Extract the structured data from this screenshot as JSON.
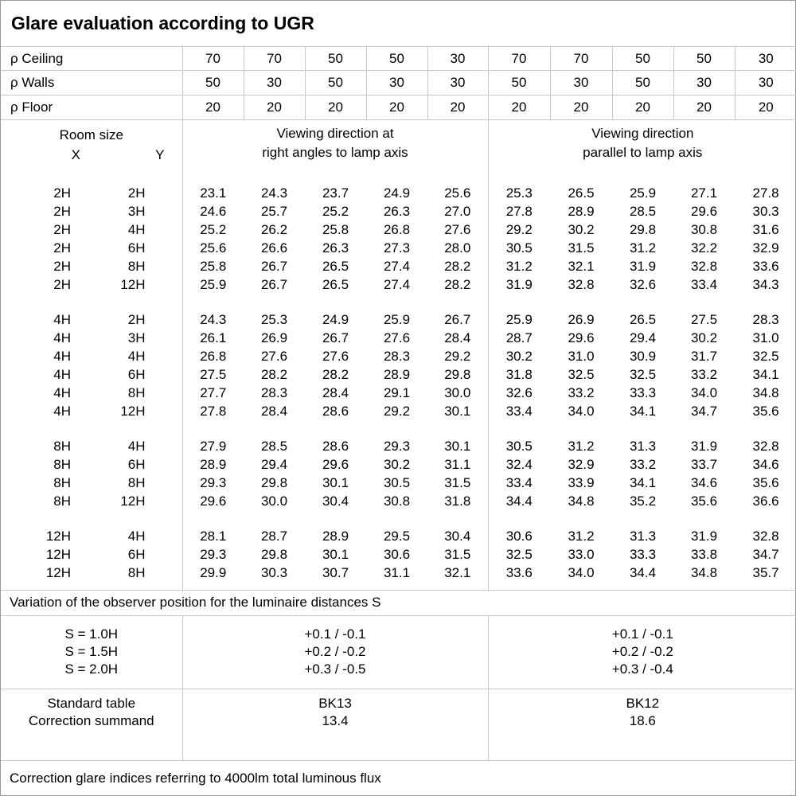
{
  "title": "Glare evaluation according to UGR",
  "colors": {
    "background": "#ffffff",
    "text": "#000000",
    "gridline": "#c9c9c9",
    "outer_border": "#9a9a9a"
  },
  "reflectance_rows": [
    {
      "label": "ρ Ceiling",
      "values": [
        "70",
        "70",
        "50",
        "50",
        "30",
        "70",
        "70",
        "50",
        "50",
        "30"
      ]
    },
    {
      "label": "ρ Walls",
      "values": [
        "50",
        "30",
        "50",
        "30",
        "30",
        "50",
        "30",
        "50",
        "30",
        "30"
      ]
    },
    {
      "label": "ρ Floor",
      "values": [
        "20",
        "20",
        "20",
        "20",
        "20",
        "20",
        "20",
        "20",
        "20",
        "20"
      ]
    }
  ],
  "header": {
    "room_size": "Room size",
    "x_label": "X",
    "y_label": "Y",
    "group1": {
      "line1": "Viewing direction at",
      "line2": "right angles to lamp axis"
    },
    "group2": {
      "line1": "Viewing direction",
      "line2": "parallel to lamp axis"
    }
  },
  "ugr_blocks": [
    {
      "rows": [
        {
          "x": "2H",
          "y": "2H",
          "right_angles": [
            "23.1",
            "24.3",
            "23.7",
            "24.9",
            "25.6"
          ],
          "parallel": [
            "25.3",
            "26.5",
            "25.9",
            "27.1",
            "27.8"
          ]
        },
        {
          "x": "2H",
          "y": "3H",
          "right_angles": [
            "24.6",
            "25.7",
            "25.2",
            "26.3",
            "27.0"
          ],
          "parallel": [
            "27.8",
            "28.9",
            "28.5",
            "29.6",
            "30.3"
          ]
        },
        {
          "x": "2H",
          "y": "4H",
          "right_angles": [
            "25.2",
            "26.2",
            "25.8",
            "26.8",
            "27.6"
          ],
          "parallel": [
            "29.2",
            "30.2",
            "29.8",
            "30.8",
            "31.6"
          ]
        },
        {
          "x": "2H",
          "y": "6H",
          "right_angles": [
            "25.6",
            "26.6",
            "26.3",
            "27.3",
            "28.0"
          ],
          "parallel": [
            "30.5",
            "31.5",
            "31.2",
            "32.2",
            "32.9"
          ]
        },
        {
          "x": "2H",
          "y": "8H",
          "right_angles": [
            "25.8",
            "26.7",
            "26.5",
            "27.4",
            "28.2"
          ],
          "parallel": [
            "31.2",
            "32.1",
            "31.9",
            "32.8",
            "33.6"
          ]
        },
        {
          "x": "2H",
          "y": "12H",
          "right_angles": [
            "25.9",
            "26.7",
            "26.5",
            "27.4",
            "28.2"
          ],
          "parallel": [
            "31.9",
            "32.8",
            "32.6",
            "33.4",
            "34.3"
          ]
        }
      ]
    },
    {
      "rows": [
        {
          "x": "4H",
          "y": "2H",
          "right_angles": [
            "24.3",
            "25.3",
            "24.9",
            "25.9",
            "26.7"
          ],
          "parallel": [
            "25.9",
            "26.9",
            "26.5",
            "27.5",
            "28.3"
          ]
        },
        {
          "x": "4H",
          "y": "3H",
          "right_angles": [
            "26.1",
            "26.9",
            "26.7",
            "27.6",
            "28.4"
          ],
          "parallel": [
            "28.7",
            "29.6",
            "29.4",
            "30.2",
            "31.0"
          ]
        },
        {
          "x": "4H",
          "y": "4H",
          "right_angles": [
            "26.8",
            "27.6",
            "27.6",
            "28.3",
            "29.2"
          ],
          "parallel": [
            "30.2",
            "31.0",
            "30.9",
            "31.7",
            "32.5"
          ]
        },
        {
          "x": "4H",
          "y": "6H",
          "right_angles": [
            "27.5",
            "28.2",
            "28.2",
            "28.9",
            "29.8"
          ],
          "parallel": [
            "31.8",
            "32.5",
            "32.5",
            "33.2",
            "34.1"
          ]
        },
        {
          "x": "4H",
          "y": "8H",
          "right_angles": [
            "27.7",
            "28.3",
            "28.4",
            "29.1",
            "30.0"
          ],
          "parallel": [
            "32.6",
            "33.2",
            "33.3",
            "34.0",
            "34.8"
          ]
        },
        {
          "x": "4H",
          "y": "12H",
          "right_angles": [
            "27.8",
            "28.4",
            "28.6",
            "29.2",
            "30.1"
          ],
          "parallel": [
            "33.4",
            "34.0",
            "34.1",
            "34.7",
            "35.6"
          ]
        }
      ]
    },
    {
      "rows": [
        {
          "x": "8H",
          "y": "4H",
          "right_angles": [
            "27.9",
            "28.5",
            "28.6",
            "29.3",
            "30.1"
          ],
          "parallel": [
            "30.5",
            "31.2",
            "31.3",
            "31.9",
            "32.8"
          ]
        },
        {
          "x": "8H",
          "y": "6H",
          "right_angles": [
            "28.9",
            "29.4",
            "29.6",
            "30.2",
            "31.1"
          ],
          "parallel": [
            "32.4",
            "32.9",
            "33.2",
            "33.7",
            "34.6"
          ]
        },
        {
          "x": "8H",
          "y": "8H",
          "right_angles": [
            "29.3",
            "29.8",
            "30.1",
            "30.5",
            "31.5"
          ],
          "parallel": [
            "33.4",
            "33.9",
            "34.1",
            "34.6",
            "35.6"
          ]
        },
        {
          "x": "8H",
          "y": "12H",
          "right_angles": [
            "29.6",
            "30.0",
            "30.4",
            "30.8",
            "31.8"
          ],
          "parallel": [
            "34.4",
            "34.8",
            "35.2",
            "35.6",
            "36.6"
          ]
        }
      ]
    },
    {
      "rows": [
        {
          "x": "12H",
          "y": "4H",
          "right_angles": [
            "28.1",
            "28.7",
            "28.9",
            "29.5",
            "30.4"
          ],
          "parallel": [
            "30.6",
            "31.2",
            "31.3",
            "31.9",
            "32.8"
          ]
        },
        {
          "x": "12H",
          "y": "6H",
          "right_angles": [
            "29.3",
            "29.8",
            "30.1",
            "30.6",
            "31.5"
          ],
          "parallel": [
            "32.5",
            "33.0",
            "33.3",
            "33.8",
            "34.7"
          ]
        },
        {
          "x": "12H",
          "y": "8H",
          "right_angles": [
            "29.9",
            "30.3",
            "30.7",
            "31.1",
            "32.1"
          ],
          "parallel": [
            "33.6",
            "34.0",
            "34.4",
            "34.8",
            "35.7"
          ]
        }
      ]
    }
  ],
  "variation_note": "Variation of the observer position for the luminaire distances S",
  "variation_rows": [
    {
      "s": "S = 1.0H",
      "right_angles": "+0.1 / -0.1",
      "parallel": "+0.1 / -0.1"
    },
    {
      "s": "S = 1.5H",
      "right_angles": "+0.2 / -0.2",
      "parallel": "+0.2 / -0.2"
    },
    {
      "s": "S = 2.0H",
      "right_angles": "+0.3 / -0.5",
      "parallel": "+0.3 / -0.4"
    }
  ],
  "standard_rows": [
    {
      "label": "Standard table",
      "right_angles": "BK13",
      "parallel": "BK12"
    },
    {
      "label": "Correction summand",
      "right_angles": "13.4",
      "parallel": "18.6"
    }
  ],
  "footer_note": "Correction glare indices referring to 4000lm total luminous flux"
}
